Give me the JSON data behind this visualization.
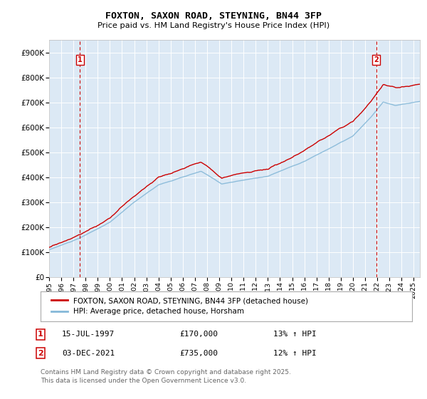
{
  "title": "FOXTON, SAXON ROAD, STEYNING, BN44 3FP",
  "subtitle": "Price paid vs. HM Land Registry's House Price Index (HPI)",
  "legend_label_red": "FOXTON, SAXON ROAD, STEYNING, BN44 3FP (detached house)",
  "legend_label_blue": "HPI: Average price, detached house, Horsham",
  "annotation1_date": "15-JUL-1997",
  "annotation1_price": "£170,000",
  "annotation1_hpi": "13% ↑ HPI",
  "annotation2_date": "03-DEC-2021",
  "annotation2_price": "£735,000",
  "annotation2_hpi": "12% ↑ HPI",
  "footer": "Contains HM Land Registry data © Crown copyright and database right 2025.\nThis data is licensed under the Open Government Licence v3.0.",
  "red_color": "#cc0000",
  "blue_color": "#85b8d8",
  "plot_background": "#dce9f5",
  "ylim_min": 0,
  "ylim_max": 950000,
  "yticks": [
    0,
    100000,
    200000,
    300000,
    400000,
    500000,
    600000,
    700000,
    800000,
    900000
  ],
  "ytick_labels": [
    "£0",
    "£100K",
    "£200K",
    "£300K",
    "£400K",
    "£500K",
    "£600K",
    "£700K",
    "£800K",
    "£900K"
  ],
  "xmin_year": 1995.0,
  "xmax_year": 2025.5,
  "xtick_years": [
    1995,
    1996,
    1997,
    1998,
    1999,
    2000,
    2001,
    2002,
    2003,
    2004,
    2005,
    2006,
    2007,
    2008,
    2009,
    2010,
    2011,
    2012,
    2013,
    2014,
    2015,
    2016,
    2017,
    2018,
    2019,
    2020,
    2021,
    2022,
    2023,
    2024,
    2025
  ],
  "sale1_year": 1997.54,
  "sale1_price": 170000,
  "sale2_year": 2021.92,
  "sale2_price": 735000
}
